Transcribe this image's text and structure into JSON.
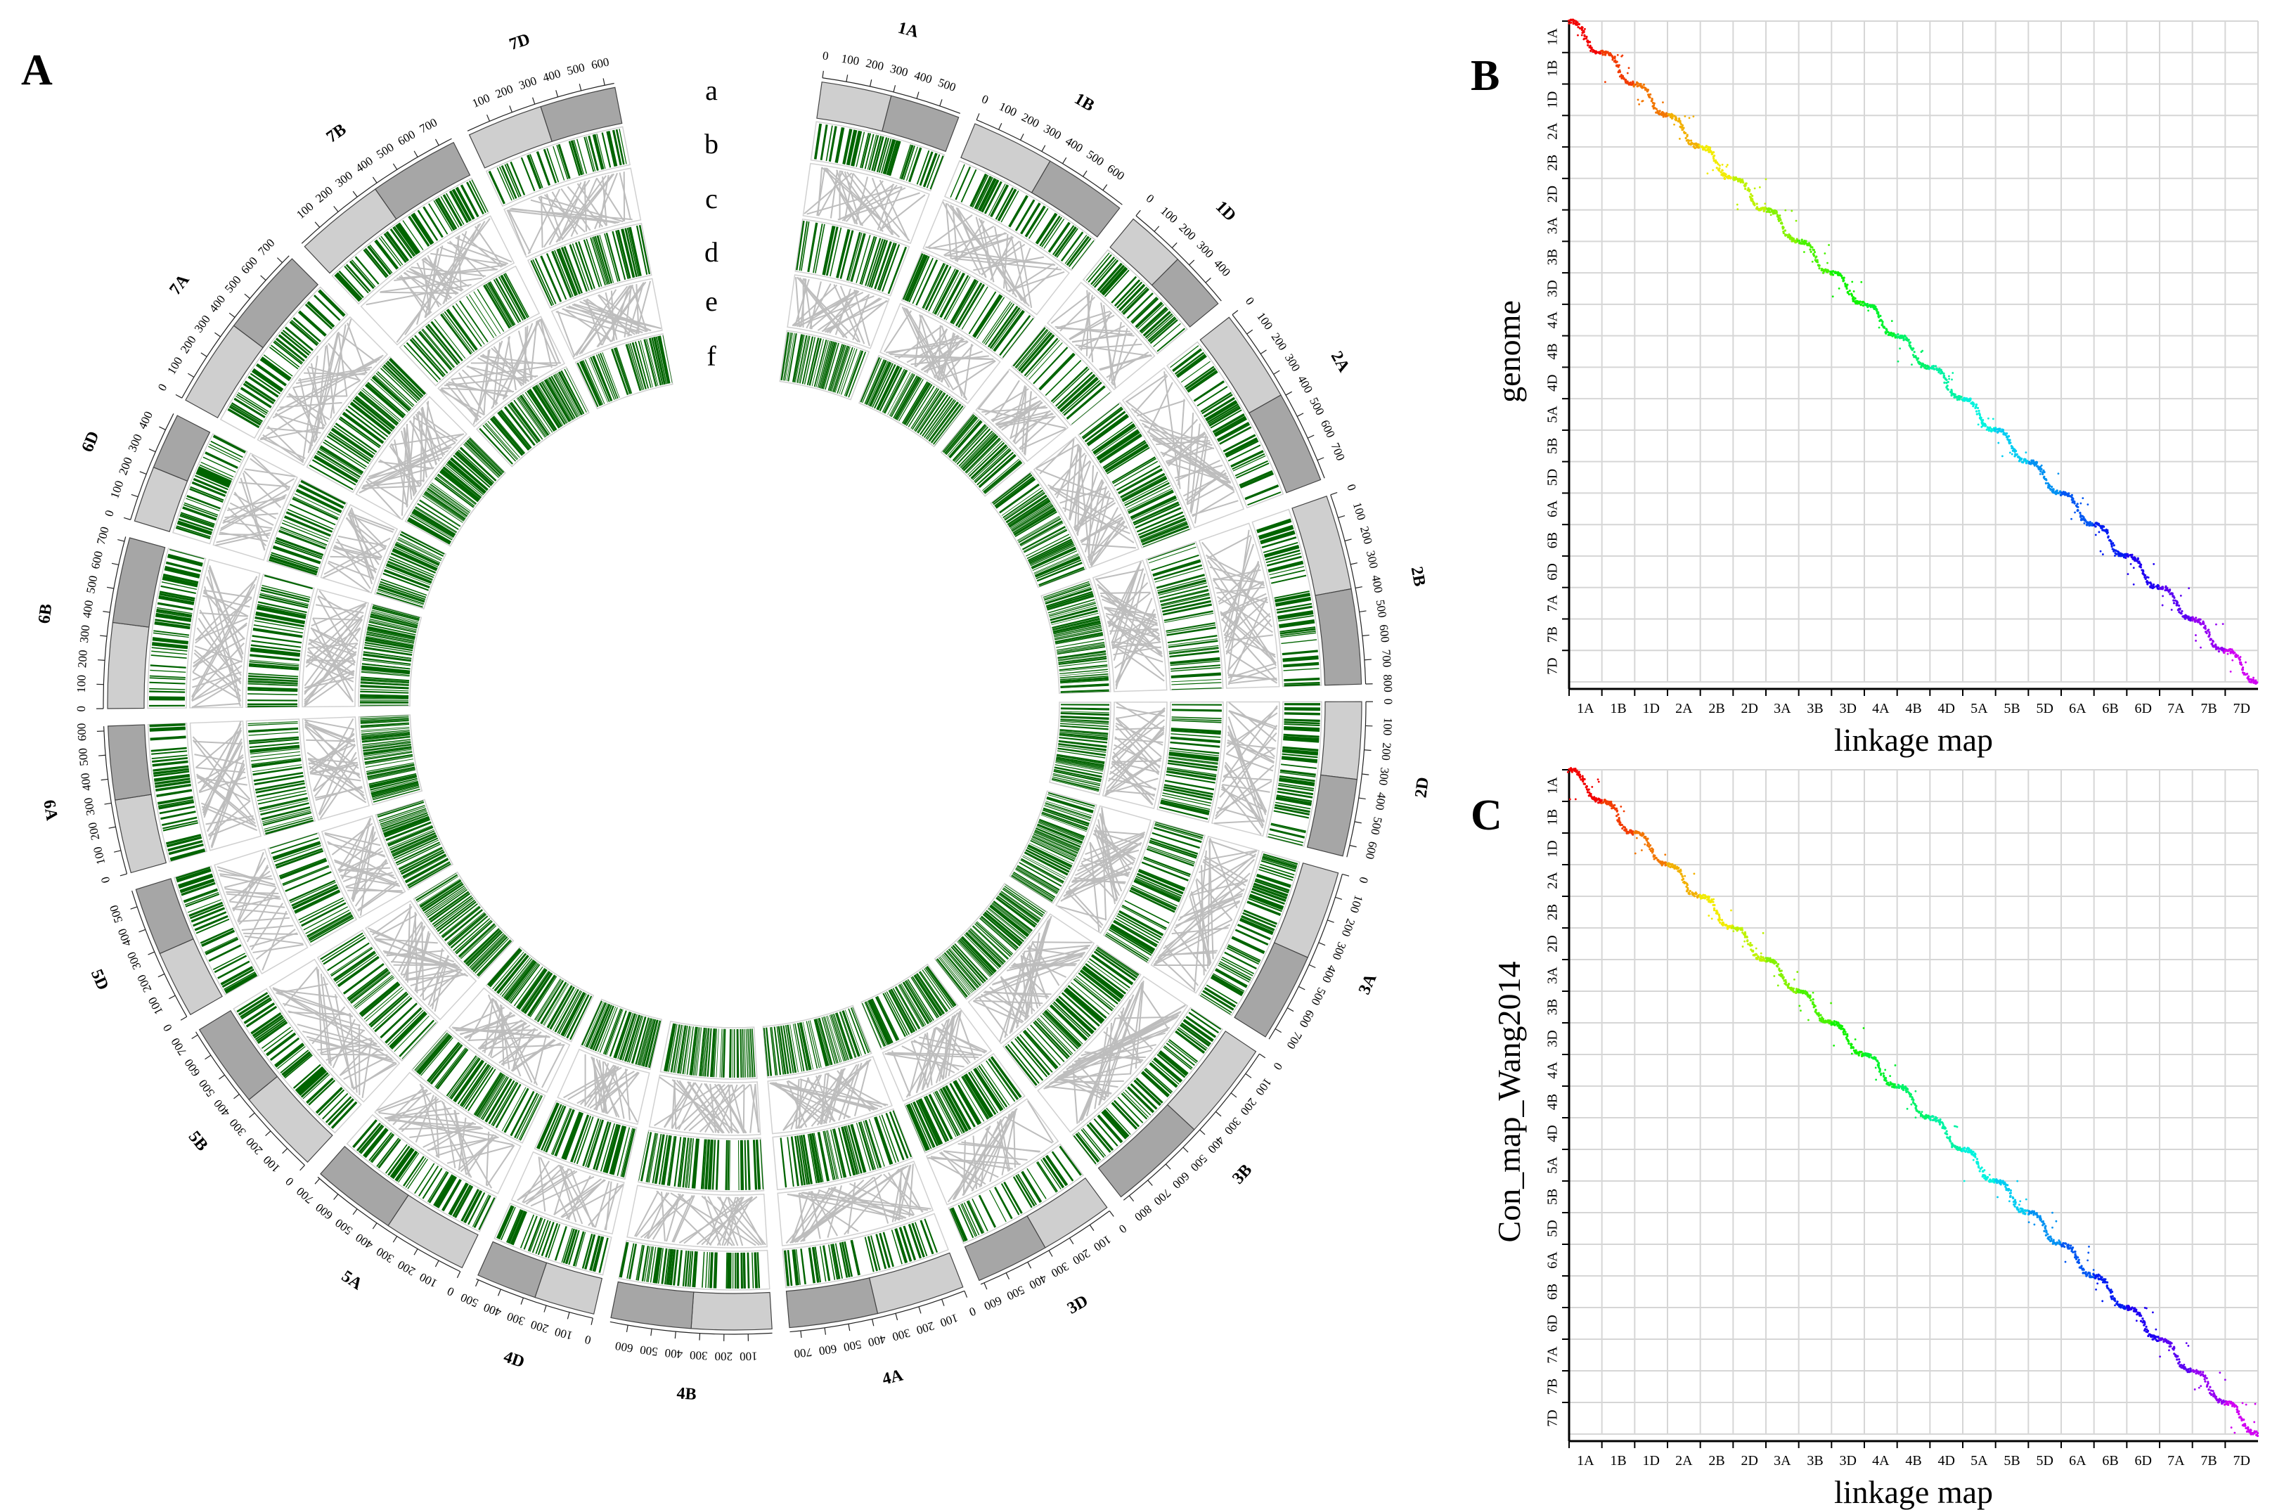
{
  "panels": {
    "a": "A",
    "b": "B",
    "c": "C"
  },
  "colors": {
    "green": "#006400",
    "ideogram_dark": "#a6a6a6",
    "ideogram_light": "#cfcfcf",
    "link": "#bdbdbd",
    "grid": "#d6d6d6"
  },
  "chart_data": [
    {
      "type": "circos",
      "title": "",
      "track_labels": [
        "a",
        "b",
        "c",
        "d",
        "e",
        "f"
      ],
      "chromosomes": [
        {
          "name": "1A",
          "length": 590,
          "ticks": [
            0,
            100,
            200,
            300,
            400,
            500
          ]
        },
        {
          "name": "1B",
          "length": 700,
          "ticks": [
            0,
            100,
            200,
            300,
            400,
            500,
            600
          ]
        },
        {
          "name": "1D",
          "length": 500,
          "ticks": [
            0,
            100,
            200,
            300,
            400
          ]
        },
        {
          "name": "2A",
          "length": 780,
          "ticks": [
            0,
            100,
            200,
            300,
            400,
            500,
            600,
            700
          ]
        },
        {
          "name": "2B",
          "length": 800,
          "ticks": [
            0,
            100,
            200,
            300,
            400,
            500,
            600,
            700,
            800
          ]
        },
        {
          "name": "2D",
          "length": 650,
          "ticks": [
            0,
            100,
            200,
            300,
            400,
            500,
            600
          ]
        },
        {
          "name": "3A",
          "length": 750,
          "ticks": [
            0,
            100,
            200,
            300,
            400,
            500,
            600,
            700
          ]
        },
        {
          "name": "3B",
          "length": 830,
          "ticks": [
            0,
            100,
            200,
            300,
            400,
            500,
            600,
            700,
            800
          ]
        },
        {
          "name": "3D",
          "length": 615,
          "ticks": [
            0,
            100,
            200,
            300,
            400,
            500,
            600
          ]
        },
        {
          "name": "4A",
          "length": 745,
          "ticks": [
            0,
            100,
            200,
            300,
            400,
            500,
            600,
            700
          ]
        },
        {
          "name": "4B",
          "length": 675,
          "ticks": [
            100,
            200,
            300,
            400,
            500,
            600
          ]
        },
        {
          "name": "4D",
          "length": 510,
          "ticks": [
            0,
            100,
            200,
            300,
            400,
            500
          ]
        },
        {
          "name": "5A",
          "length": 710,
          "ticks": [
            0,
            100,
            200,
            300,
            400,
            500,
            600,
            700
          ]
        },
        {
          "name": "5B",
          "length": 715,
          "ticks": [
            0,
            100,
            200,
            300,
            400,
            500,
            600,
            700
          ]
        },
        {
          "name": "5D",
          "length": 570,
          "ticks": [
            0,
            100,
            200,
            300,
            400,
            500
          ]
        },
        {
          "name": "6A",
          "length": 620,
          "ticks": [
            0,
            100,
            200,
            300,
            400,
            500,
            600
          ]
        },
        {
          "name": "6B",
          "length": 720,
          "ticks": [
            0,
            100,
            200,
            300,
            400,
            500,
            600,
            700
          ]
        },
        {
          "name": "6D",
          "length": 475,
          "ticks": [
            0,
            100,
            200,
            300,
            400
          ]
        },
        {
          "name": "7A",
          "length": 740,
          "ticks": [
            0,
            100,
            200,
            300,
            400,
            500,
            600,
            700
          ]
        },
        {
          "name": "7B",
          "length": 760,
          "ticks": [
            100,
            200,
            300,
            400,
            500,
            600,
            700
          ]
        },
        {
          "name": "7D",
          "length": 640,
          "ticks": [
            100,
            200,
            300,
            400,
            500,
            600
          ]
        }
      ]
    },
    {
      "type": "scatter",
      "panel": "B",
      "xlabel": "linkage map",
      "ylabel": "genome",
      "x_groups": [
        "1A",
        "1B",
        "1D",
        "2A",
        "2B",
        "2D",
        "3A",
        "3B",
        "3D",
        "4A",
        "4B",
        "4D",
        "5A",
        "5B",
        "5D",
        "6A",
        "6B",
        "6D",
        "7A",
        "7B",
        "7D"
      ],
      "y_groups": [
        "1A",
        "1B",
        "1D",
        "2A",
        "2B",
        "2D",
        "3A",
        "3B",
        "3D",
        "4A",
        "4B",
        "4D",
        "5A",
        "5B",
        "5D",
        "6A",
        "6B",
        "6D",
        "7A",
        "7B",
        "7D"
      ],
      "series": "markers by chromosome, colored by chromosome (rainbow), collinear along diagonal"
    },
    {
      "type": "scatter",
      "panel": "C",
      "xlabel": "linkage map",
      "ylabel": "Con_map_Wang2014",
      "x_groups": [
        "1A",
        "1B",
        "1D",
        "2A",
        "2B",
        "2D",
        "3A",
        "3B",
        "3D",
        "4A",
        "4B",
        "4D",
        "5A",
        "5B",
        "5D",
        "6A",
        "6B",
        "6D",
        "7A",
        "7B",
        "7D"
      ],
      "y_groups": [
        "1A",
        "1B",
        "1D",
        "2A",
        "2B",
        "2D",
        "3A",
        "3B",
        "3D",
        "4A",
        "4B",
        "4D",
        "5A",
        "5B",
        "5D",
        "6A",
        "6B",
        "6D",
        "7A",
        "7B",
        "7D"
      ],
      "series": "markers by chromosome, colored by chromosome (rainbow), collinear along diagonal"
    }
  ]
}
